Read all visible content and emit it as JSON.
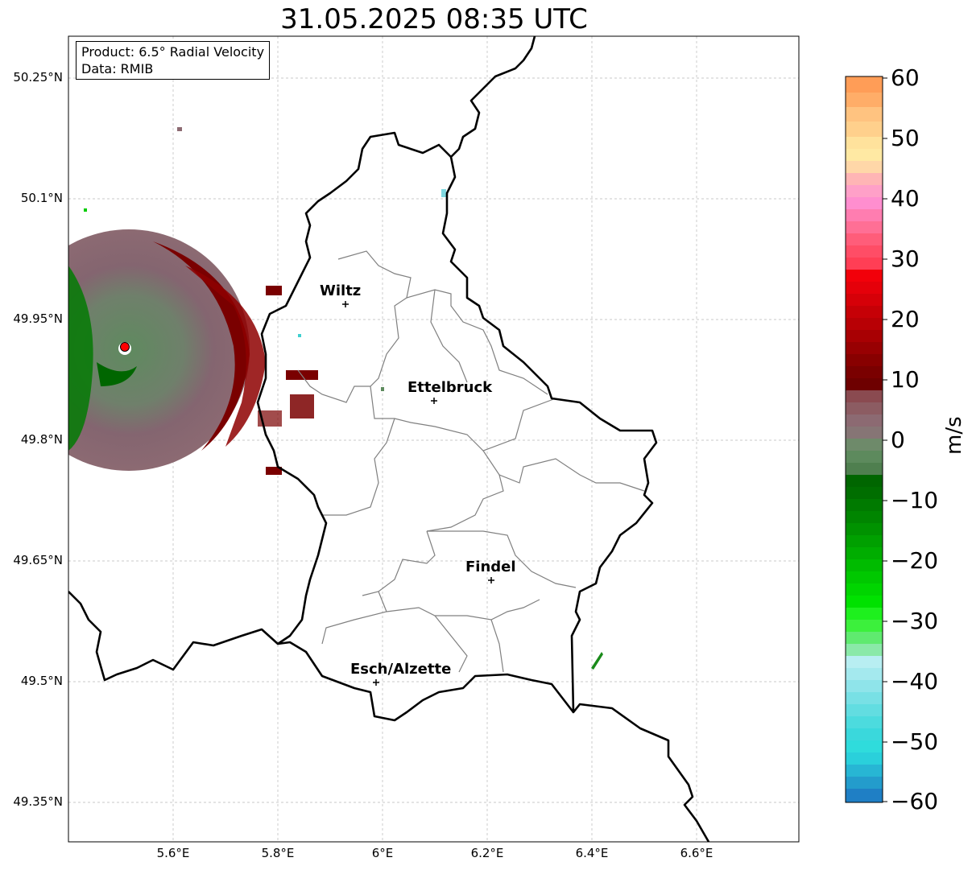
{
  "title": "31.05.2025 08:35 UTC",
  "info": {
    "product": "Product: 6.5° Radial Velocity",
    "data": "Data: RMIB"
  },
  "axes": {
    "lat_labels": [
      "50.25°N",
      "50.1°N",
      "49.95°N",
      "49.8°N",
      "49.65°N",
      "49.5°N",
      "49.35°N"
    ],
    "lon_labels": [
      "5.6°E",
      "5.8°E",
      "6°E",
      "6.2°E",
      "6.4°E",
      "6.6°E"
    ],
    "grid": true
  },
  "cities": [
    {
      "name": "Wiltz",
      "lon": 5.93,
      "lat": 49.97
    },
    {
      "name": "Ettelbruck",
      "lon": 6.1,
      "lat": 49.85
    },
    {
      "name": "Findel",
      "lon": 6.21,
      "lat": 49.63
    },
    {
      "name": "Esch/Alzette",
      "lon": 5.99,
      "lat": 49.5
    }
  ],
  "colorbar": {
    "unit": "m/s",
    "ticks": [
      "60",
      "50",
      "40",
      "30",
      "20",
      "10",
      "0",
      "−10",
      "−20",
      "−30",
      "−40",
      "−50",
      "−60"
    ],
    "min": -60,
    "max": 60,
    "colors": {
      "top": "#ff9d57",
      "orange": "#ffc380",
      "yellow": "#ffe29c",
      "pink": "#ff8ecf",
      "salmon": "#ff5d7a",
      "red": "#f2000a",
      "darkred": "#7a0000",
      "mauve": "#8c6a72",
      "greygreen": "#5d8a5d",
      "darkgreen": "#006600",
      "green": "#00dd00",
      "lightgreen": "#7fe27f",
      "paleblue": "#b8eef2",
      "cyan": "#2fdcdc",
      "blue": "#1f7fc5"
    }
  },
  "radar_site": {
    "lon": 5.505,
    "lat": 49.915,
    "color": "#ff0000"
  }
}
